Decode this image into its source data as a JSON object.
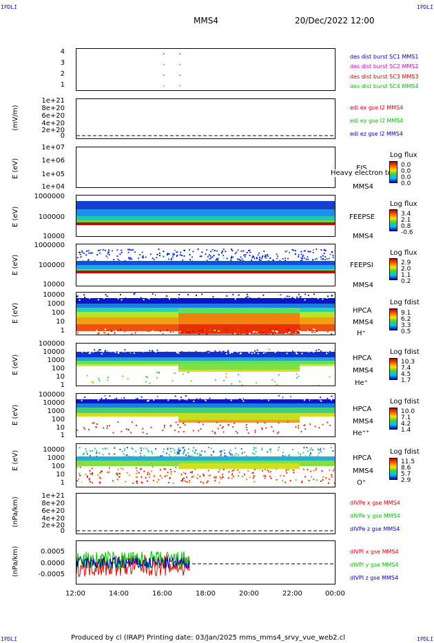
{
  "corners": {
    "tl": "IPDLI",
    "tr": "IPDLI",
    "bl": "IPDLI",
    "br": "IPDLI"
  },
  "header": {
    "title": "MMS4",
    "date": "20/Dec/2022 12:00"
  },
  "footer": "Produced by cl (IRAP)   Printing date: 03/Jan/2025   mms_mms4_srvy_vue_web2.cl",
  "colors": {
    "mms1": "#0000c0",
    "mms2": "#d000d0",
    "mms3": "#d00000",
    "mms4": "#00c000",
    "x": "#e00000",
    "y": "#00c000",
    "z": "#0000c0"
  },
  "chart_data": [
    {
      "type": "scatter",
      "panel": "burst",
      "ylabel": "",
      "yticks": [
        "4",
        "3",
        "2",
        "1"
      ],
      "ylim": [
        0.5,
        4.5
      ],
      "legend": [
        {
          "text": "des dist burst SC1 MMS1",
          "color": "#0000c0"
        },
        {
          "text": "des dist burst SC2 MMS2",
          "color": "#d000d0"
        },
        {
          "text": "des dist burst SC3 MMS3",
          "color": "#d00000"
        },
        {
          "text": "des dist burst SC4 MMS4",
          "color": "#00c000"
        }
      ],
      "points": [
        {
          "x": "16:00",
          "y": 4
        },
        {
          "x": "16:45",
          "y": 4
        },
        {
          "x": "16:00",
          "y": 3
        },
        {
          "x": "16:45",
          "y": 3
        },
        {
          "x": "16:00",
          "y": 2
        },
        {
          "x": "16:45",
          "y": 2
        },
        {
          "x": "16:00",
          "y": 1
        },
        {
          "x": "16:45",
          "y": 1
        }
      ]
    },
    {
      "type": "line",
      "panel": "edi",
      "ylabel": "(mV/m)",
      "yticks": [
        "1e+21",
        "8e+20",
        "6e+20",
        "4e+20",
        "2e+20",
        "0"
      ],
      "legend": [
        {
          "text": "edi ex gse l2 MMS4",
          "color": "#e00000"
        },
        {
          "text": "edi ey gse l2 MMS4",
          "color": "#00c000"
        },
        {
          "text": "edi ez gse l2 MMS4",
          "color": "#0000c0"
        }
      ]
    },
    {
      "type": "heatmap",
      "panel": "eis",
      "ylabel": "E (eV)",
      "yticks": [
        "1e+07",
        "1e+06",
        "1e+05",
        "1e+04"
      ],
      "labels": [
        "EIS",
        "MMS4"
      ],
      "overlay": "Heavy electron to",
      "cb_title": "Log flux",
      "cb_values": [
        "0.0",
        "0.0",
        "0.0",
        "0.0"
      ]
    },
    {
      "type": "heatmap",
      "panel": "feepse",
      "ylabel": "E (eV)",
      "yticks": [
        "1000000",
        "100000",
        "10000"
      ],
      "labels": [
        "FEEPSE",
        "MMS4"
      ],
      "cb_title": "Log flux",
      "cb_values": [
        "3.4",
        "2.1",
        "0.8",
        "-0.6"
      ]
    },
    {
      "type": "heatmap",
      "panel": "feepsi",
      "ylabel": "E (eV)",
      "yticks": [
        "1000000",
        "100000",
        "10000"
      ],
      "labels": [
        "FEEPSI",
        "MMS4"
      ],
      "cb_title": "Log flux",
      "cb_values": [
        "2.9",
        "2.0",
        "1.1",
        "0.2"
      ]
    },
    {
      "type": "heatmap",
      "panel": "hpca_h",
      "ylabel": "E (eV)",
      "yticks": [
        "10000",
        "1000",
        "100",
        "10",
        "1"
      ],
      "labels": [
        "HPCA",
        "MMS4",
        "H⁺"
      ],
      "cb_title": "Log fdist",
      "cb_values": [
        "9.1",
        "6.2",
        "3.3",
        "0.5"
      ]
    },
    {
      "type": "heatmap",
      "panel": "hpca_he",
      "ylabel": "E (eV)",
      "yticks": [
        "100000",
        "10000",
        "1000",
        "100",
        "10",
        "1"
      ],
      "labels": [
        "HPCA",
        "MMS4",
        "He⁺"
      ],
      "cb_title": "Log fdist",
      "cb_values": [
        "10.3",
        "7.4",
        "4.5",
        "1.7"
      ]
    },
    {
      "type": "heatmap",
      "panel": "hpca_hepp",
      "ylabel": "E (eV)",
      "yticks": [
        "100000",
        "10000",
        "1000",
        "100",
        "10",
        "1"
      ],
      "labels": [
        "HPCA",
        "MMS4",
        "He⁺⁺"
      ],
      "cb_title": "Log fdist",
      "cb_values": [
        "10.0",
        "7.1",
        "4.2",
        "1.4"
      ]
    },
    {
      "type": "heatmap",
      "panel": "hpca_o",
      "ylabel": "E (eV)",
      "yticks": [
        "10000",
        "1000",
        "100",
        "10",
        "1"
      ],
      "labels": [
        "HPCA",
        "MMS4",
        "O⁺"
      ],
      "cb_title": "Log fdist",
      "cb_values": [
        "11.5",
        "8.6",
        "5.7",
        "2.9"
      ]
    },
    {
      "type": "line",
      "panel": "divpe",
      "ylabel": "(nPa/km)",
      "yticks": [
        "1e+21",
        "8e+20",
        "6e+20",
        "4e+20",
        "2e+20",
        "0"
      ],
      "legend": [
        {
          "text": "dIVPe x gse MMS4",
          "color": "#e00000"
        },
        {
          "text": "dIVPe y gse MMS4",
          "color": "#00c000"
        },
        {
          "text": "dIVPe z gse MMS4",
          "color": "#0000c0"
        }
      ]
    },
    {
      "type": "line",
      "panel": "divpi",
      "ylabel": "(nPa/km)",
      "yticks": [
        "0.0005",
        "0.0000",
        "-0.0005"
      ],
      "ylim": [
        -0.0009,
        0.0009
      ],
      "legend": [
        {
          "text": "dIVPI x gse MMS4",
          "color": "#e00000"
        },
        {
          "text": "dIVPI y gse MMS4",
          "color": "#00c000"
        },
        {
          "text": "dIVPI z gse MMS4",
          "color": "#0000c0"
        }
      ],
      "data_end": "17:15"
    }
  ],
  "xaxis": {
    "ticks": [
      "12:00",
      "14:00",
      "16:00",
      "18:00",
      "20:00",
      "22:00",
      "00:00"
    ]
  }
}
